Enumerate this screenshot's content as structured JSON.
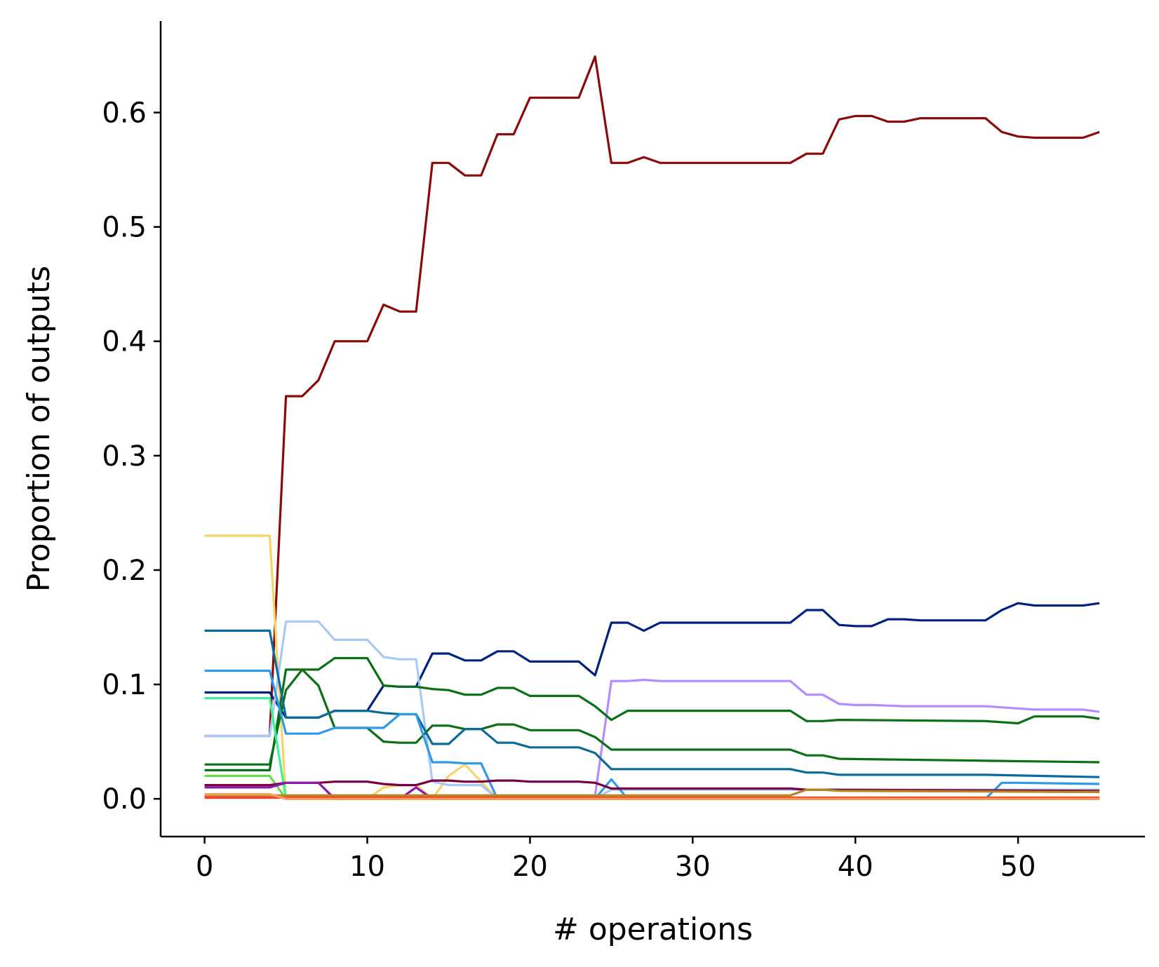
{
  "chart_data": {
    "type": "line",
    "title": "",
    "xlabel": "# operations",
    "ylabel": "Proportion of outputs",
    "xlim": [
      -2.7,
      57.8
    ],
    "ylim": [
      -0.033,
      0.68
    ],
    "xticks": [
      "0",
      "10",
      "20",
      "30",
      "40",
      "50"
    ],
    "yticks": [
      "0.0",
      "0.1",
      "0.2",
      "0.3",
      "0.4",
      "0.5",
      "0.6"
    ],
    "grid": false,
    "legend": "none",
    "series": [
      {
        "color": "#8b0a0a",
        "points": [
          [
            0,
            0.055
          ],
          [
            4,
            0.055
          ],
          [
            5,
            0.352
          ],
          [
            6,
            0.352
          ],
          [
            7,
            0.366
          ],
          [
            8,
            0.4
          ],
          [
            9,
            0.4
          ],
          [
            10,
            0.4
          ],
          [
            11,
            0.432
          ],
          [
            12,
            0.426
          ],
          [
            13,
            0.426
          ],
          [
            14,
            0.556
          ],
          [
            15,
            0.556
          ],
          [
            16,
            0.545
          ],
          [
            17,
            0.545
          ],
          [
            18,
            0.581
          ],
          [
            19,
            0.581
          ],
          [
            20,
            0.613
          ],
          [
            21,
            0.613
          ],
          [
            22,
            0.613
          ],
          [
            23,
            0.613
          ],
          [
            24,
            0.649
          ],
          [
            25,
            0.556
          ],
          [
            26,
            0.556
          ],
          [
            27,
            0.561
          ],
          [
            28,
            0.556
          ],
          [
            36,
            0.556
          ],
          [
            37,
            0.564
          ],
          [
            38,
            0.564
          ],
          [
            39,
            0.594
          ],
          [
            40,
            0.597
          ],
          [
            41,
            0.597
          ],
          [
            42,
            0.592
          ],
          [
            43,
            0.592
          ],
          [
            44,
            0.595
          ],
          [
            48,
            0.595
          ],
          [
            49,
            0.583
          ],
          [
            50,
            0.579
          ],
          [
            51,
            0.578
          ],
          [
            54,
            0.578
          ],
          [
            55,
            0.583
          ]
        ]
      },
      {
        "color": "#f5d469",
        "points": [
          [
            0,
            0.23
          ],
          [
            4,
            0.23
          ],
          [
            5,
            0.0
          ],
          [
            10,
            0.0
          ],
          [
            11,
            0.01
          ],
          [
            12,
            0.012
          ],
          [
            13,
            0.012
          ],
          [
            14,
            0.0
          ],
          [
            15,
            0.02
          ],
          [
            16,
            0.03
          ],
          [
            17,
            0.015
          ],
          [
            18,
            0.0
          ],
          [
            55,
            0.0
          ]
        ]
      },
      {
        "color": "#002280",
        "points": [
          [
            0,
            0.093
          ],
          [
            4,
            0.093
          ],
          [
            5,
            0.071
          ],
          [
            6,
            0.071
          ],
          [
            7,
            0.071
          ],
          [
            8,
            0.077
          ],
          [
            9,
            0.077
          ],
          [
            10,
            0.077
          ],
          [
            11,
            0.099
          ],
          [
            12,
            0.098
          ],
          [
            13,
            0.098
          ],
          [
            14,
            0.127
          ],
          [
            15,
            0.127
          ],
          [
            16,
            0.121
          ],
          [
            17,
            0.121
          ],
          [
            18,
            0.129
          ],
          [
            19,
            0.129
          ],
          [
            20,
            0.12
          ],
          [
            21,
            0.12
          ],
          [
            22,
            0.12
          ],
          [
            23,
            0.12
          ],
          [
            24,
            0.108
          ],
          [
            25,
            0.154
          ],
          [
            26,
            0.154
          ],
          [
            27,
            0.147
          ],
          [
            28,
            0.154
          ],
          [
            36,
            0.154
          ],
          [
            37,
            0.165
          ],
          [
            38,
            0.165
          ],
          [
            39,
            0.152
          ],
          [
            40,
            0.151
          ],
          [
            41,
            0.151
          ],
          [
            42,
            0.157
          ],
          [
            43,
            0.157
          ],
          [
            44,
            0.156
          ],
          [
            48,
            0.156
          ],
          [
            49,
            0.165
          ],
          [
            50,
            0.171
          ],
          [
            51,
            0.169
          ],
          [
            54,
            0.169
          ],
          [
            55,
            0.171
          ]
        ]
      },
      {
        "color": "#a8c8f5",
        "points": [
          [
            0,
            0.055
          ],
          [
            4,
            0.055
          ],
          [
            5,
            0.155
          ],
          [
            6,
            0.155
          ],
          [
            7,
            0.155
          ],
          [
            8,
            0.139
          ],
          [
            9,
            0.139
          ],
          [
            10,
            0.139
          ],
          [
            11,
            0.124
          ],
          [
            12,
            0.122
          ],
          [
            13,
            0.122
          ],
          [
            14,
            0.015
          ],
          [
            15,
            0.012
          ],
          [
            17,
            0.012
          ],
          [
            18,
            0.0
          ],
          [
            24,
            0.0
          ],
          [
            25,
            0.008
          ],
          [
            26,
            0.008
          ],
          [
            55,
            0.008
          ]
        ]
      },
      {
        "color": "#b38cff",
        "points": [
          [
            0,
            0.003
          ],
          [
            24,
            0.003
          ],
          [
            25,
            0.103
          ],
          [
            26,
            0.103
          ],
          [
            27,
            0.104
          ],
          [
            28,
            0.103
          ],
          [
            36,
            0.103
          ],
          [
            37,
            0.091
          ],
          [
            38,
            0.091
          ],
          [
            39,
            0.083
          ],
          [
            40,
            0.082
          ],
          [
            41,
            0.082
          ],
          [
            43,
            0.081
          ],
          [
            44,
            0.081
          ],
          [
            48,
            0.081
          ],
          [
            49,
            0.08
          ],
          [
            50,
            0.079
          ],
          [
            51,
            0.078
          ],
          [
            54,
            0.078
          ],
          [
            55,
            0.076
          ]
        ]
      },
      {
        "color": "#0a7015",
        "points": [
          [
            0,
            0.025
          ],
          [
            4,
            0.025
          ],
          [
            5,
            0.113
          ],
          [
            6,
            0.113
          ],
          [
            7,
            0.099
          ],
          [
            8,
            0.062
          ],
          [
            9,
            0.062
          ],
          [
            10,
            0.062
          ],
          [
            11,
            0.05
          ],
          [
            12,
            0.049
          ],
          [
            13,
            0.049
          ],
          [
            14,
            0.064
          ],
          [
            15,
            0.064
          ],
          [
            16,
            0.061
          ],
          [
            17,
            0.061
          ],
          [
            18,
            0.065
          ],
          [
            19,
            0.065
          ],
          [
            20,
            0.06
          ],
          [
            21,
            0.06
          ],
          [
            22,
            0.06
          ],
          [
            23,
            0.06
          ],
          [
            24,
            0.054
          ],
          [
            25,
            0.043
          ],
          [
            26,
            0.043
          ],
          [
            28,
            0.043
          ],
          [
            36,
            0.043
          ],
          [
            37,
            0.038
          ],
          [
            38,
            0.038
          ],
          [
            39,
            0.035
          ],
          [
            55,
            0.032
          ]
        ]
      },
      {
        "color": "#0a7015",
        "points": [
          [
            0,
            0.03
          ],
          [
            4,
            0.03
          ],
          [
            5,
            0.095
          ],
          [
            6,
            0.113
          ],
          [
            7,
            0.113
          ],
          [
            8,
            0.123
          ],
          [
            9,
            0.123
          ],
          [
            10,
            0.123
          ],
          [
            11,
            0.099
          ],
          [
            12,
            0.098
          ],
          [
            13,
            0.098
          ],
          [
            14,
            0.096
          ],
          [
            15,
            0.095
          ],
          [
            16,
            0.091
          ],
          [
            17,
            0.091
          ],
          [
            18,
            0.097
          ],
          [
            19,
            0.097
          ],
          [
            20,
            0.09
          ],
          [
            21,
            0.09
          ],
          [
            22,
            0.09
          ],
          [
            23,
            0.09
          ],
          [
            24,
            0.081
          ],
          [
            25,
            0.069
          ],
          [
            26,
            0.077
          ],
          [
            28,
            0.077
          ],
          [
            36,
            0.077
          ],
          [
            37,
            0.068
          ],
          [
            38,
            0.068
          ],
          [
            39,
            0.069
          ],
          [
            48,
            0.068
          ],
          [
            49,
            0.067
          ],
          [
            50,
            0.066
          ],
          [
            51,
            0.072
          ],
          [
            54,
            0.072
          ],
          [
            55,
            0.07
          ]
        ]
      },
      {
        "color": "#0a6a9a",
        "points": [
          [
            0,
            0.147
          ],
          [
            4,
            0.147
          ],
          [
            5,
            0.071
          ],
          [
            6,
            0.071
          ],
          [
            7,
            0.071
          ],
          [
            8,
            0.077
          ],
          [
            9,
            0.077
          ],
          [
            10,
            0.077
          ],
          [
            11,
            0.075
          ],
          [
            12,
            0.074
          ],
          [
            13,
            0.074
          ],
          [
            14,
            0.048
          ],
          [
            15,
            0.048
          ],
          [
            16,
            0.061
          ],
          [
            17,
            0.061
          ],
          [
            18,
            0.049
          ],
          [
            19,
            0.049
          ],
          [
            20,
            0.045
          ],
          [
            21,
            0.045
          ],
          [
            22,
            0.045
          ],
          [
            23,
            0.045
          ],
          [
            24,
            0.04
          ],
          [
            25,
            0.026
          ],
          [
            26,
            0.026
          ],
          [
            36,
            0.026
          ],
          [
            37,
            0.023
          ],
          [
            38,
            0.023
          ],
          [
            39,
            0.021
          ],
          [
            48,
            0.021
          ],
          [
            55,
            0.019
          ]
        ]
      },
      {
        "color": "#2f9ae8",
        "points": [
          [
            0,
            0.112
          ],
          [
            4,
            0.112
          ],
          [
            5,
            0.057
          ],
          [
            6,
            0.057
          ],
          [
            7,
            0.057
          ],
          [
            8,
            0.062
          ],
          [
            9,
            0.062
          ],
          [
            10,
            0.062
          ],
          [
            11,
            0.062
          ],
          [
            12,
            0.074
          ],
          [
            13,
            0.074
          ],
          [
            14,
            0.032
          ],
          [
            15,
            0.032
          ],
          [
            16,
            0.031
          ],
          [
            17,
            0.031
          ],
          [
            18,
            0.0
          ],
          [
            24,
            0.0
          ],
          [
            25,
            0.017
          ],
          [
            26,
            0.0
          ],
          [
            48,
            0.0
          ],
          [
            49,
            0.014
          ],
          [
            50,
            0.014
          ],
          [
            55,
            0.013
          ]
        ]
      },
      {
        "color": "#3cf29a",
        "points": [
          [
            0,
            0.088
          ],
          [
            4,
            0.088
          ],
          [
            5,
            0.0
          ],
          [
            55,
            0.0
          ]
        ]
      },
      {
        "color": "#66dd44",
        "points": [
          [
            0,
            0.02
          ],
          [
            4,
            0.02
          ],
          [
            5,
            0.0
          ],
          [
            55,
            0.0
          ]
        ]
      },
      {
        "color": "#7a0045",
        "points": [
          [
            0,
            0.012
          ],
          [
            4,
            0.012
          ],
          [
            5,
            0.014
          ],
          [
            6,
            0.014
          ],
          [
            7,
            0.014
          ],
          [
            8,
            0.015
          ],
          [
            9,
            0.015
          ],
          [
            10,
            0.015
          ],
          [
            11,
            0.013
          ],
          [
            12,
            0.012
          ],
          [
            13,
            0.012
          ],
          [
            14,
            0.016
          ],
          [
            15,
            0.016
          ],
          [
            16,
            0.015
          ],
          [
            17,
            0.015
          ],
          [
            18,
            0.016
          ],
          [
            19,
            0.016
          ],
          [
            20,
            0.015
          ],
          [
            21,
            0.015
          ],
          [
            22,
            0.015
          ],
          [
            23,
            0.015
          ],
          [
            24,
            0.014
          ],
          [
            25,
            0.009
          ],
          [
            26,
            0.009
          ],
          [
            36,
            0.009
          ],
          [
            37,
            0.008
          ],
          [
            55,
            0.007
          ]
        ]
      },
      {
        "color": "#8a1aa6",
        "points": [
          [
            0,
            0.01
          ],
          [
            4,
            0.01
          ],
          [
            5,
            0.014
          ],
          [
            6,
            0.014
          ],
          [
            7,
            0.014
          ],
          [
            8,
            0.0
          ],
          [
            12,
            0.0
          ],
          [
            13,
            0.01
          ],
          [
            14,
            0.0
          ],
          [
            55,
            0.0
          ]
        ]
      },
      {
        "color": "#b8861e",
        "points": [
          [
            0,
            0.003
          ],
          [
            36,
            0.003
          ],
          [
            37,
            0.008
          ],
          [
            38,
            0.008
          ],
          [
            39,
            0.007
          ],
          [
            55,
            0.006
          ]
        ]
      },
      {
        "color": "#ff3b1f",
        "points": [
          [
            0,
            0.001
          ],
          [
            55,
            0.001
          ]
        ]
      },
      {
        "color": "#f5a05a",
        "points": [
          [
            0,
            0.004
          ],
          [
            4,
            0.004
          ],
          [
            5,
            0.0
          ],
          [
            55,
            0.0
          ]
        ]
      }
    ]
  }
}
